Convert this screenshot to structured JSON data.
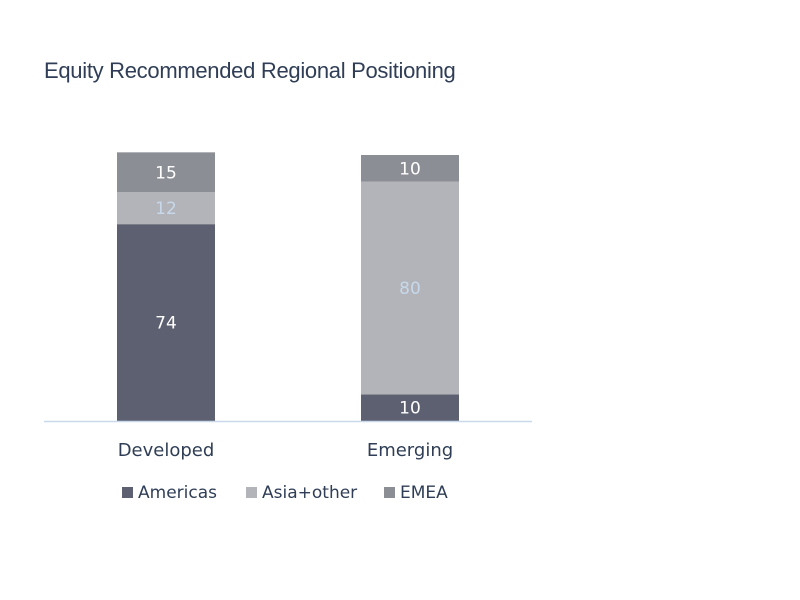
{
  "chart_data": {
    "type": "bar",
    "stacked": true,
    "title": "Equity Recommended Regional Positioning",
    "categories": [
      "Developed",
      "Emerging"
    ],
    "series": [
      {
        "name": "Americas",
        "values": [
          74,
          10
        ],
        "color": "#5c6070",
        "label_color": "#ffffff"
      },
      {
        "name": "Asia+other",
        "values": [
          12,
          80
        ],
        "color": "#b3b4b9",
        "label_color": "#c6d8ea"
      },
      {
        "name": "EMEA",
        "values": [
          15,
          10
        ],
        "color": "#8c8e96",
        "label_color": "#ffffff"
      }
    ],
    "ylim": [
      0,
      100
    ],
    "xlabel": "",
    "ylabel": "",
    "grid": false,
    "legend_position": "bottom",
    "axis_color": "#c9d9ec"
  }
}
